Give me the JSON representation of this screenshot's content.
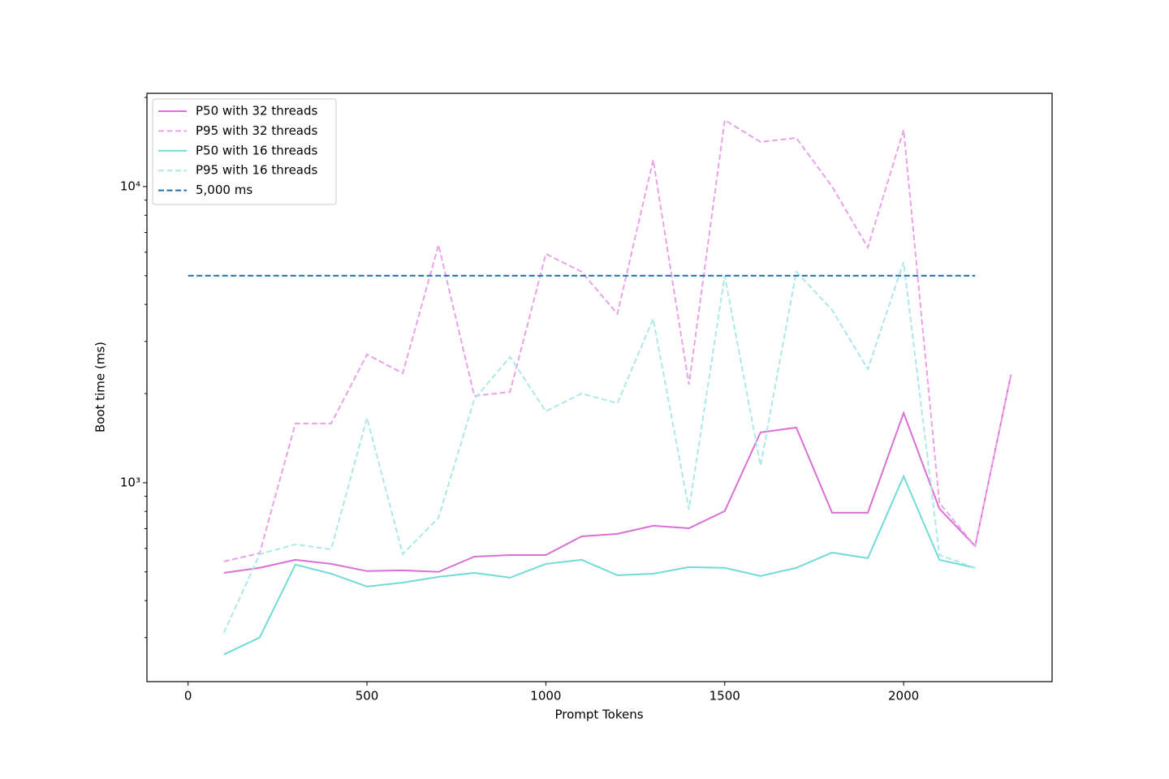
{
  "chart_data": {
    "type": "line",
    "xlabel": "Prompt Tokens",
    "ylabel": "Boot time (ms)",
    "xlim": [
      -115,
      2415
    ],
    "ylim": [
      213,
      20650
    ],
    "yscale": "log",
    "xticks": [
      0,
      500,
      1000,
      1500,
      2000
    ],
    "yticks": [
      {
        "value": 1000,
        "label": "10³"
      },
      {
        "value": 10000,
        "label": "10⁴"
      }
    ],
    "yminorticks": [
      300,
      400,
      500,
      600,
      700,
      800,
      900,
      2000,
      3000,
      4000,
      5000,
      6000,
      7000,
      8000,
      9000,
      20000
    ],
    "legend": "upper left",
    "series": [
      {
        "name": "P50 with 32 threads",
        "color": "#da70d6",
        "linestyle": "solid",
        "x": [
          100,
          200,
          300,
          400,
          500,
          600,
          700,
          800,
          900,
          1000,
          1100,
          1200,
          1300,
          1400,
          1500,
          1600,
          1700,
          1800,
          1900,
          2000,
          2100,
          2200,
          2300
        ],
        "values": [
          496,
          516,
          549,
          532,
          503,
          506,
          500,
          563,
          570,
          570,
          659,
          672,
          716,
          702,
          802,
          1479,
          1536,
          792,
          792,
          1720,
          817,
          611,
          2314
        ]
      },
      {
        "name": "P95 with 32 threads",
        "color": "#eaa2e8",
        "linestyle": "dashed",
        "x": [
          100,
          200,
          300,
          400,
          500,
          600,
          700,
          800,
          900,
          1000,
          1100,
          1200,
          1300,
          1400,
          1500,
          1600,
          1700,
          1800,
          1900,
          2000,
          2100,
          2200,
          2300
        ],
        "values": [
          542,
          578,
          1585,
          1585,
          2710,
          2343,
          6350,
          1964,
          2027,
          5925,
          5157,
          3715,
          12310,
          2145,
          16770,
          14150,
          14600,
          10000,
          6230,
          15550,
          854,
          611,
          2314
        ]
      },
      {
        "name": "P50 with 16 threads",
        "color": "#72dbd8",
        "linestyle": "solid",
        "x": [
          100,
          200,
          300,
          400,
          500,
          600,
          700,
          800,
          900,
          1000,
          1100,
          1200,
          1300,
          1400,
          1500,
          1600,
          1700,
          1800,
          1900,
          2000,
          2100,
          2200
        ],
        "values": [
          263,
          300,
          529,
          493,
          446,
          460,
          481,
          496,
          478,
          532,
          549,
          487,
          493,
          519,
          516,
          484,
          516,
          581,
          556,
          1052,
          549,
          516
        ]
      },
      {
        "name": "P95 with 16 threads",
        "color": "#ade8e8",
        "linestyle": "dashed",
        "x": [
          100,
          200,
          300,
          400,
          500,
          600,
          700,
          800,
          900,
          1000,
          1100,
          1200,
          1300,
          1400,
          1500,
          1600,
          1700,
          1800,
          1900,
          2000,
          2100,
          2200
        ],
        "values": [
          311,
          574,
          619,
          596,
          1656,
          574,
          762,
          1915,
          2659,
          1742,
          2001,
          1856,
          3577,
          812,
          4996,
          1142,
          5157,
          3834,
          2419,
          5562,
          570,
          516
        ]
      },
      {
        "name": "5,000 ms",
        "color": "#1a6fa6",
        "linestyle": "dashed",
        "x": [
          0,
          2200
        ],
        "values": [
          5000,
          5000
        ]
      }
    ]
  }
}
